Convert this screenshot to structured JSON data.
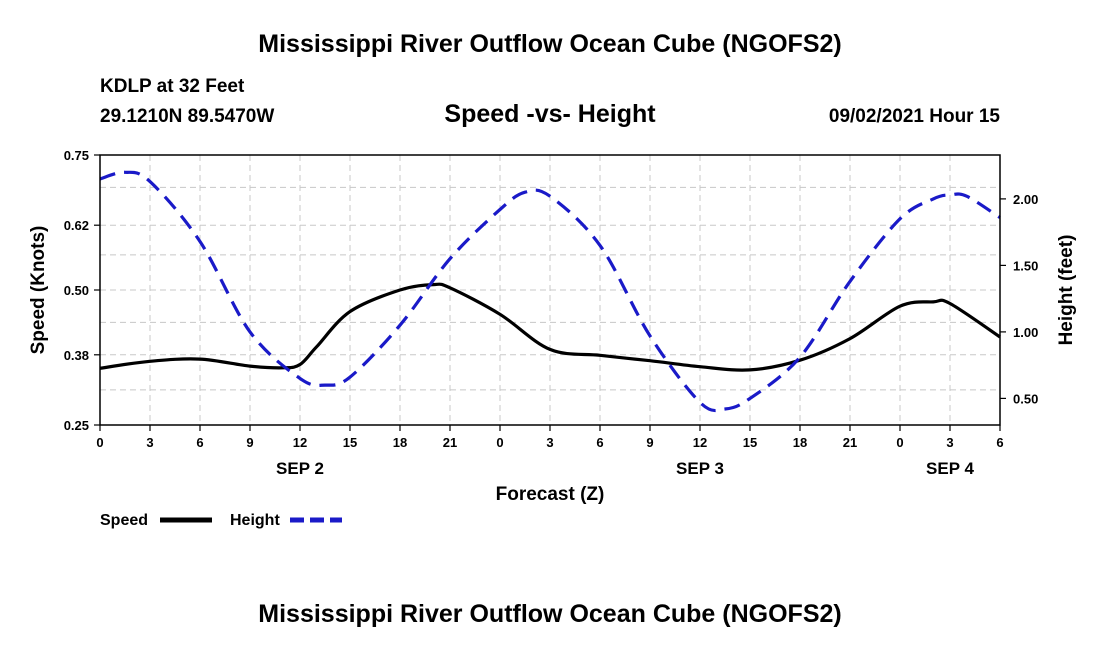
{
  "header": {
    "title": "Mississippi River Outflow Ocean Cube (NGOFS2)",
    "station": "KDLP at 32 Feet",
    "coords": "29.1210N  89.5470W",
    "subtitle": "Speed -vs- Height",
    "date": "09/02/2021 Hour 15"
  },
  "footer": {
    "title": "Mississippi River Outflow Ocean Cube (NGOFS2)"
  },
  "chart_data": {
    "type": "line",
    "title": "Speed -vs- Height",
    "xlabel": "Forecast (Z)",
    "ylabel": "Speed (Knots)",
    "y2label": "Height (feet)",
    "grid": true,
    "xlim": [
      0,
      54
    ],
    "ylim": [
      0.25,
      0.75
    ],
    "y2lim": [
      0.3,
      2.33
    ],
    "x_ticks": [
      0,
      3,
      6,
      9,
      12,
      15,
      18,
      21,
      24,
      27,
      30,
      33,
      36,
      39,
      42,
      45,
      48,
      51,
      54
    ],
    "x_tick_labels": [
      "0",
      "3",
      "6",
      "9",
      "12",
      "15",
      "18",
      "21",
      "0",
      "3",
      "6",
      "9",
      "12",
      "15",
      "18",
      "21",
      "0",
      "3",
      "6"
    ],
    "y_ticks": [
      0.25,
      0.38,
      0.5,
      0.62,
      0.75
    ],
    "y_tick_labels": [
      "0.25",
      "0.38",
      "0.50",
      "0.62",
      "0.75"
    ],
    "y2_ticks": [
      0.5,
      1.0,
      1.5,
      2.0
    ],
    "y2_tick_labels": [
      "0.50",
      "1.00",
      "1.50",
      "2.00"
    ],
    "date_labels": [
      {
        "x": 12,
        "label": "SEP 2"
      },
      {
        "x": 36,
        "label": "SEP 3"
      },
      {
        "x": 51,
        "label": "SEP 4"
      }
    ],
    "legend_position": "bottom-left",
    "series": [
      {
        "name": "Speed",
        "axis": "left",
        "color": "#000000",
        "style": "solid",
        "x": [
          0,
          3,
          6,
          9,
          11,
          12,
          13,
          15,
          18,
          20,
          21,
          24,
          27,
          30,
          33,
          36,
          39,
          42,
          45,
          48,
          50,
          51,
          54
        ],
        "values": [
          0.355,
          0.368,
          0.372,
          0.359,
          0.356,
          0.362,
          0.395,
          0.46,
          0.5,
          0.51,
          0.504,
          0.455,
          0.39,
          0.379,
          0.369,
          0.358,
          0.352,
          0.37,
          0.41,
          0.47,
          0.478,
          0.475,
          0.413
        ]
      },
      {
        "name": "Height",
        "axis": "right",
        "color": "#1a1ac8",
        "style": "dashed",
        "x": [
          0,
          1.5,
          3,
          6,
          9,
          12,
          13.5,
          15,
          18,
          21,
          24,
          25.5,
          27,
          30,
          33,
          36,
          37.5,
          39,
          42,
          45,
          48,
          50,
          51,
          52,
          54
        ],
        "values": [
          2.15,
          2.2,
          2.13,
          1.68,
          1.0,
          0.65,
          0.6,
          0.66,
          1.05,
          1.55,
          1.92,
          2.05,
          2.02,
          1.65,
          0.97,
          0.47,
          0.42,
          0.5,
          0.81,
          1.38,
          1.85,
          2.0,
          2.03,
          2.02,
          1.86
        ]
      }
    ]
  }
}
